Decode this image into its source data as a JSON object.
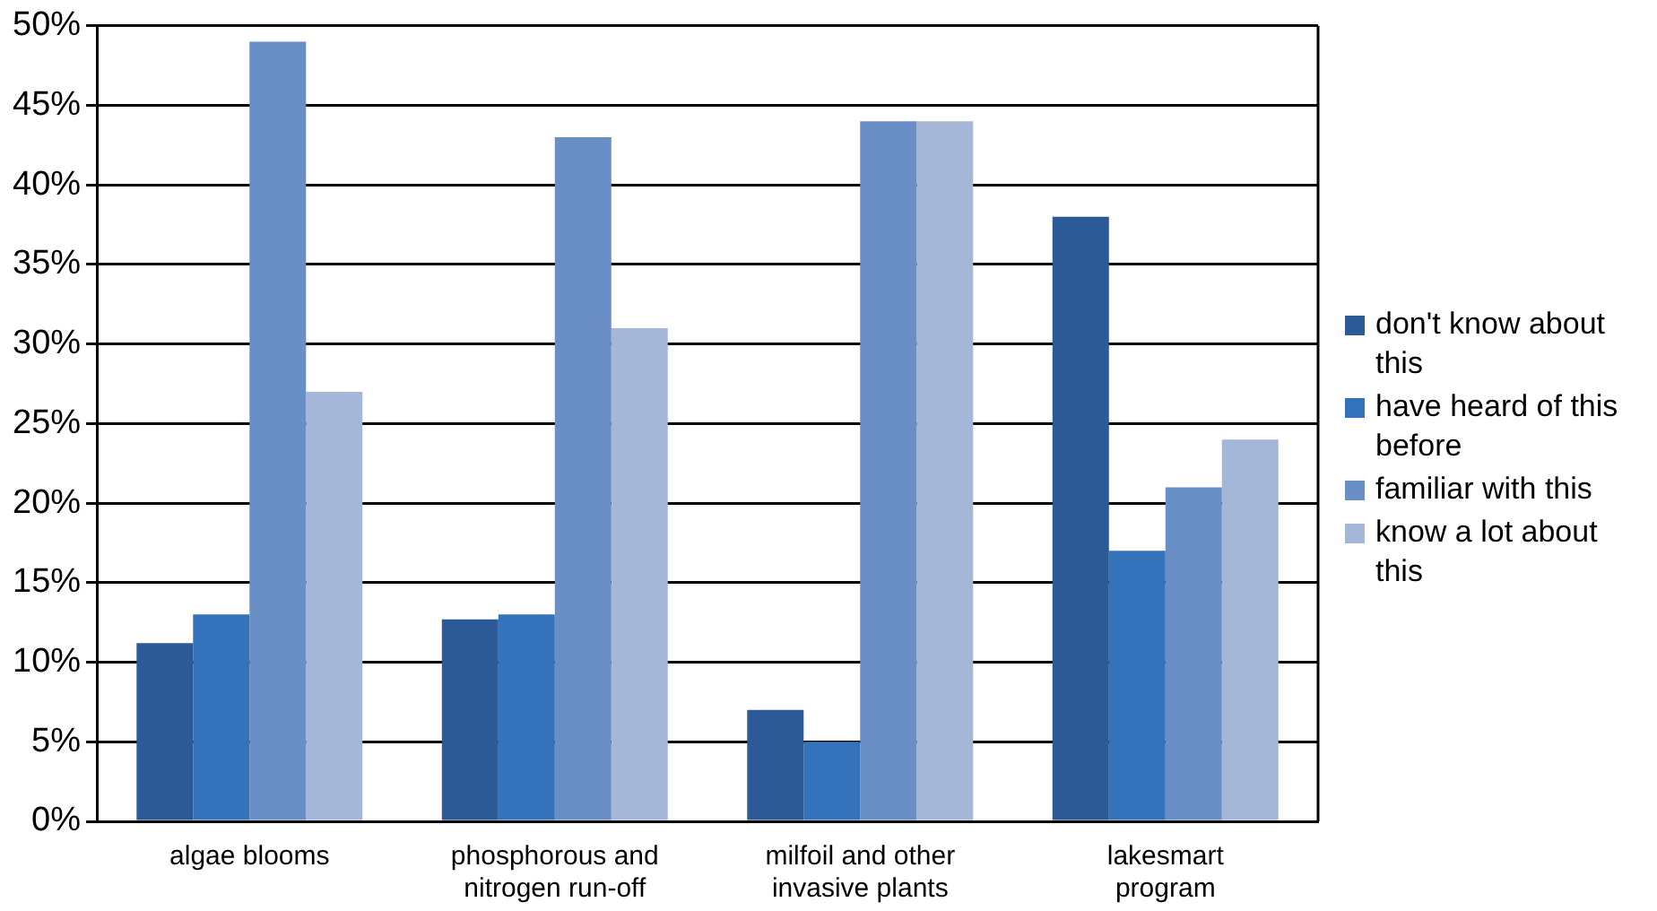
{
  "chart_data": {
    "type": "bar",
    "categories": [
      "algae blooms",
      "phosphorous and nitrogen run-off",
      "milfoil and other invasive plants",
      "lakesmart program"
    ],
    "series": [
      {
        "name": "don't know about this",
        "color": "#2c5a96",
        "values": [
          11.2,
          12.7,
          7,
          38
        ]
      },
      {
        "name": "have heard of this before",
        "color": "#3572bc",
        "values": [
          13,
          13,
          5,
          17
        ]
      },
      {
        "name": "familiar with this",
        "color": "#6a8ec6",
        "values": [
          49,
          43,
          44,
          21
        ]
      },
      {
        "name": "know a lot about this",
        "color": "#a5b7d8",
        "values": [
          27,
          31,
          44,
          24
        ]
      }
    ],
    "ylim": [
      0,
      50
    ],
    "yticks": [
      {
        "value": 0,
        "label": "0%"
      },
      {
        "value": 5,
        "label": "5%"
      },
      {
        "value": 10,
        "label": "10%"
      },
      {
        "value": 15,
        "label": "15%"
      },
      {
        "value": 20,
        "label": "20%"
      },
      {
        "value": 25,
        "label": "25%"
      },
      {
        "value": 30,
        "label": "30%"
      },
      {
        "value": 35,
        "label": "35%"
      },
      {
        "value": 40,
        "label": "40%"
      },
      {
        "value": 45,
        "label": "45%"
      },
      {
        "value": 50,
        "label": "50%"
      }
    ],
    "grid": "y",
    "legend": "right"
  }
}
